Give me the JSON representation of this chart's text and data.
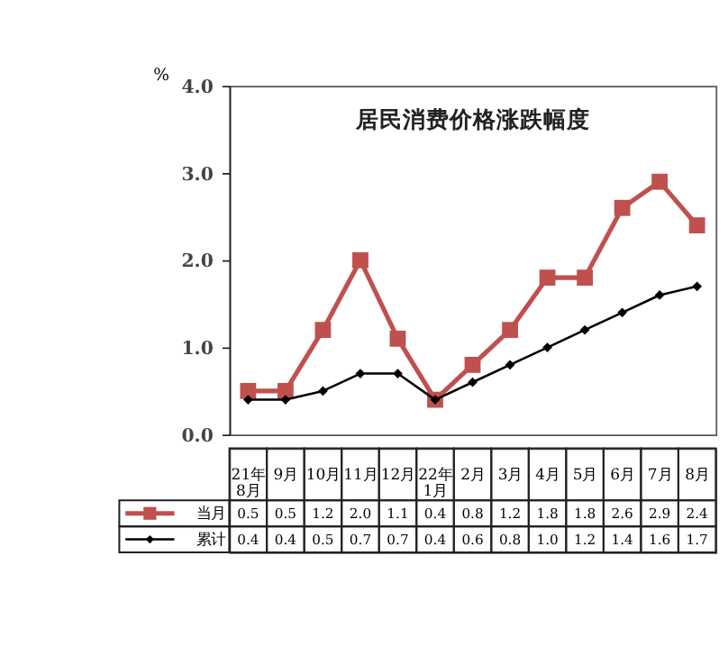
{
  "chart_data": {
    "type": "line",
    "title": "居民消费价格涨跌幅度",
    "ylabel": "%",
    "categories": [
      "21年8月",
      "9月",
      "10月",
      "11月",
      "12月",
      "22年1月",
      "2月",
      "3月",
      "4月",
      "5月",
      "6月",
      "7月",
      "8月"
    ],
    "series": [
      {
        "name": "当月",
        "color": "#c0504d",
        "marker": "square",
        "values": [
          0.5,
          0.5,
          1.2,
          2.0,
          1.1,
          0.4,
          0.8,
          1.2,
          1.8,
          1.8,
          2.6,
          2.9,
          2.4
        ],
        "value_labels": [
          "0.5",
          "0.5",
          "1.2",
          "2.0",
          "1.1",
          "0.4",
          "0.8",
          "1.2",
          "1.8",
          "1.8",
          "2.6",
          "2.9",
          "2.4"
        ]
      },
      {
        "name": "累计",
        "color": "#000000",
        "marker": "diamond",
        "values": [
          0.4,
          0.4,
          0.5,
          0.7,
          0.7,
          0.4,
          0.6,
          0.8,
          1.0,
          1.2,
          1.4,
          1.6,
          1.7
        ],
        "value_labels": [
          "0.4",
          "0.4",
          "0.5",
          "0.7",
          "0.7",
          "0.4",
          "0.6",
          "0.8",
          "1.0",
          "1.2",
          "1.4",
          "1.6",
          "1.7"
        ]
      }
    ],
    "ylim": [
      0,
      4
    ],
    "yticks": [
      {
        "value": 0,
        "label": "0.0"
      },
      {
        "value": 1,
        "label": "1.0"
      },
      {
        "value": 2,
        "label": "2.0"
      },
      {
        "value": 3,
        "label": "3.0"
      },
      {
        "value": 4,
        "label": "4.0"
      }
    ],
    "legend": "bottom left",
    "line_style": "solid"
  }
}
